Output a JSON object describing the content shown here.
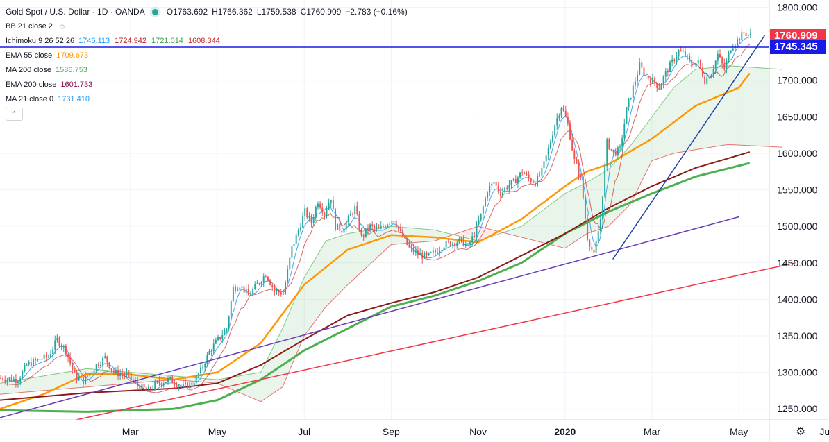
{
  "header": {
    "symbol": "Gold Spot / U.S. Dollar · 1D · OANDA",
    "ohlc": {
      "open": "O1763.692",
      "high": "H1766.362",
      "low": "L1759.538",
      "close": "C1760.909",
      "change": "−2.783 (−0.16%)"
    }
  },
  "indicators": [
    {
      "name": "BB 21 close 2",
      "values": [],
      "eye": true
    },
    {
      "name": "Ichimoku 9 26 52 26",
      "values": [
        {
          "v": "1746.113",
          "color": "#2196f3"
        },
        {
          "v": "1724.942",
          "color": "#b71c1c"
        },
        {
          "v": "1721.014",
          "color": "#43a047"
        },
        {
          "v": "1608.344",
          "color": "#c62828"
        }
      ]
    },
    {
      "name": "EMA 55 close",
      "values": [
        {
          "v": "1709.673",
          "color": "#ff9800"
        }
      ]
    },
    {
      "name": "MA 200 close",
      "values": [
        {
          "v": "1586.753",
          "color": "#4caf50"
        }
      ]
    },
    {
      "name": "EMA 200 close",
      "values": [
        {
          "v": "1601.733",
          "color": "#880e4f"
        }
      ]
    },
    {
      "name": "MA 21 close 0",
      "values": [
        {
          "v": "1731.410",
          "color": "#2196f3"
        }
      ]
    }
  ],
  "price_badges": [
    {
      "label": "1760.909",
      "value": 1760.909,
      "color": "#f23645"
    },
    {
      "label": "1745.345",
      "value": 1745.345,
      "color": "#1a1ae6"
    }
  ],
  "chart_data": {
    "type": "candlestick",
    "instrument": "Gold Spot / U.S. Dollar",
    "timeframe": "1D",
    "ylim": [
      1235,
      1810
    ],
    "y_ticks": [
      "1250.000",
      "1300.000",
      "1350.000",
      "1400.000",
      "1450.000",
      "1500.000",
      "1550.000",
      "1600.000",
      "1650.000",
      "1700.000",
      "1750.000",
      "1800.000"
    ],
    "x_ticks": [
      "Mar",
      "May",
      "Jul",
      "Sep",
      "Nov",
      "2020",
      "Mar",
      "May",
      "Jul"
    ],
    "x_tick_index": [
      60,
      100,
      140,
      180,
      220,
      260,
      300,
      340,
      380
    ],
    "n_bars": 354,
    "horizontal_line": 1745.345,
    "trendlines": [
      {
        "color": "#f23645",
        "from": [
          35,
          1235
        ],
        "to": [
          366,
          1450
        ]
      },
      {
        "color": "#673ab7",
        "from": [
          0,
          1238
        ],
        "to": [
          340,
          1513
        ]
      },
      {
        "color": "#1f3fa0",
        "from": [
          282,
          1455
        ],
        "to": [
          352,
          1762
        ]
      }
    ],
    "price_path": [
      [
        0,
        1292
      ],
      [
        8,
        1290
      ],
      [
        12,
        1310
      ],
      [
        18,
        1318
      ],
      [
        22,
        1322
      ],
      [
        26,
        1345
      ],
      [
        30,
        1330
      ],
      [
        34,
        1295
      ],
      [
        38,
        1288
      ],
      [
        44,
        1310
      ],
      [
        48,
        1320
      ],
      [
        52,
        1300
      ],
      [
        58,
        1296
      ],
      [
        64,
        1280
      ],
      [
        68,
        1275
      ],
      [
        72,
        1285
      ],
      [
        78,
        1290
      ],
      [
        84,
        1280
      ],
      [
        88,
        1285
      ],
      [
        92,
        1302
      ],
      [
        96,
        1328
      ],
      [
        100,
        1345
      ],
      [
        104,
        1360
      ],
      [
        107,
        1415
      ],
      [
        110,
        1420
      ],
      [
        114,
        1405
      ],
      [
        118,
        1420
      ],
      [
        122,
        1435
      ],
      [
        126,
        1412
      ],
      [
        130,
        1408
      ],
      [
        134,
        1470
      ],
      [
        137,
        1495
      ],
      [
        140,
        1520
      ],
      [
        143,
        1505
      ],
      [
        146,
        1535
      ],
      [
        149,
        1518
      ],
      [
        152,
        1540
      ],
      [
        154,
        1500
      ],
      [
        157,
        1495
      ],
      [
        160,
        1510
      ],
      [
        163,
        1525
      ],
      [
        166,
        1485
      ],
      [
        170,
        1500
      ],
      [
        174,
        1495
      ],
      [
        178,
        1505
      ],
      [
        181,
        1510
      ],
      [
        184,
        1490
      ],
      [
        188,
        1470
      ],
      [
        192,
        1462
      ],
      [
        196,
        1458
      ],
      [
        200,
        1465
      ],
      [
        204,
        1475
      ],
      [
        208,
        1478
      ],
      [
        212,
        1480
      ],
      [
        215,
        1472
      ],
      [
        218,
        1490
      ],
      [
        221,
        1515
      ],
      [
        224,
        1550
      ],
      [
        227,
        1560
      ],
      [
        230,
        1545
      ],
      [
        233,
        1555
      ],
      [
        236,
        1560
      ],
      [
        240,
        1575
      ],
      [
        243,
        1565
      ],
      [
        246,
        1560
      ],
      [
        249,
        1575
      ],
      [
        252,
        1605
      ],
      [
        255,
        1640
      ],
      [
        258,
        1665
      ],
      [
        261,
        1640
      ],
      [
        264,
        1590
      ],
      [
        267,
        1565
      ],
      [
        270,
        1485
      ],
      [
        273,
        1460
      ],
      [
        276,
        1510
      ],
      [
        279,
        1615
      ],
      [
        282,
        1600
      ],
      [
        285,
        1605
      ],
      [
        288,
        1660
      ],
      [
        291,
        1690
      ],
      [
        294,
        1720
      ],
      [
        297,
        1705
      ],
      [
        300,
        1700
      ],
      [
        303,
        1690
      ],
      [
        306,
        1710
      ],
      [
        309,
        1725
      ],
      [
        312,
        1740
      ],
      [
        315,
        1735
      ],
      [
        318,
        1720
      ],
      [
        321,
        1725
      ],
      [
        324,
        1700
      ],
      [
        327,
        1710
      ],
      [
        330,
        1735
      ],
      [
        333,
        1715
      ],
      [
        336,
        1745
      ],
      [
        339,
        1755
      ],
      [
        342,
        1765
      ],
      [
        345,
        1760.909
      ]
    ],
    "series": [
      {
        "name": "EMA 55 close",
        "color": "#ff9800",
        "width": 2.5,
        "points": [
          [
            0,
            1250
          ],
          [
            20,
            1270
          ],
          [
            40,
            1298
          ],
          [
            60,
            1297
          ],
          [
            80,
            1290
          ],
          [
            100,
            1300
          ],
          [
            120,
            1340
          ],
          [
            140,
            1420
          ],
          [
            160,
            1468
          ],
          [
            180,
            1488
          ],
          [
            200,
            1485
          ],
          [
            220,
            1478
          ],
          [
            240,
            1510
          ],
          [
            260,
            1555
          ],
          [
            270,
            1575
          ],
          [
            280,
            1585
          ],
          [
            300,
            1620
          ],
          [
            320,
            1665
          ],
          [
            340,
            1690
          ],
          [
            345,
            1709.673
          ]
        ]
      },
      {
        "name": "MA 200 close",
        "color": "#4caf50",
        "width": 3,
        "points": [
          [
            0,
            1248
          ],
          [
            40,
            1246
          ],
          [
            80,
            1250
          ],
          [
            100,
            1262
          ],
          [
            120,
            1290
          ],
          [
            140,
            1330
          ],
          [
            160,
            1360
          ],
          [
            180,
            1390
          ],
          [
            200,
            1405
          ],
          [
            220,
            1425
          ],
          [
            240,
            1450
          ],
          [
            260,
            1490
          ],
          [
            280,
            1520
          ],
          [
            300,
            1545
          ],
          [
            320,
            1568
          ],
          [
            345,
            1586.753
          ]
        ]
      },
      {
        "name": "EMA 200 close",
        "color": "#8b1a1a",
        "width": 2,
        "points": [
          [
            0,
            1262
          ],
          [
            40,
            1272
          ],
          [
            80,
            1278
          ],
          [
            100,
            1285
          ],
          [
            120,
            1310
          ],
          [
            140,
            1345
          ],
          [
            160,
            1378
          ],
          [
            180,
            1395
          ],
          [
            200,
            1410
          ],
          [
            220,
            1430
          ],
          [
            240,
            1460
          ],
          [
            260,
            1490
          ],
          [
            280,
            1525
          ],
          [
            300,
            1555
          ],
          [
            320,
            1580
          ],
          [
            345,
            1601.733
          ]
        ]
      }
    ],
    "ichimoku_cloud": {
      "span_a": [
        [
          0,
          1285
        ],
        [
          40,
          1305
        ],
        [
          60,
          1300
        ],
        [
          80,
          1295
        ],
        [
          100,
          1290
        ],
        [
          120,
          1300
        ],
        [
          130,
          1360
        ],
        [
          140,
          1430
        ],
        [
          150,
          1480
        ],
        [
          160,
          1490
        ],
        [
          180,
          1500
        ],
        [
          200,
          1495
        ],
        [
          220,
          1480
        ],
        [
          240,
          1500
        ],
        [
          260,
          1545
        ],
        [
          270,
          1560
        ],
        [
          280,
          1578
        ],
        [
          290,
          1610
        ],
        [
          300,
          1650
        ],
        [
          310,
          1690
        ],
        [
          320,
          1715
        ],
        [
          335,
          1720
        ],
        [
          360,
          1715
        ]
      ],
      "span_b": [
        [
          0,
          1270
        ],
        [
          40,
          1280
        ],
        [
          60,
          1285
        ],
        [
          80,
          1290
        ],
        [
          100,
          1285
        ],
        [
          120,
          1260
        ],
        [
          130,
          1280
        ],
        [
          140,
          1350
        ],
        [
          150,
          1390
        ],
        [
          160,
          1420
        ],
        [
          180,
          1475
        ],
        [
          200,
          1480
        ],
        [
          220,
          1500
        ],
        [
          240,
          1485
        ],
        [
          260,
          1470
        ],
        [
          270,
          1490
        ],
        [
          280,
          1500
        ],
        [
          290,
          1530
        ],
        [
          300,
          1590
        ],
        [
          310,
          1600
        ],
        [
          320,
          1605
        ],
        [
          335,
          1612
        ],
        [
          360,
          1608.344
        ]
      ]
    }
  }
}
